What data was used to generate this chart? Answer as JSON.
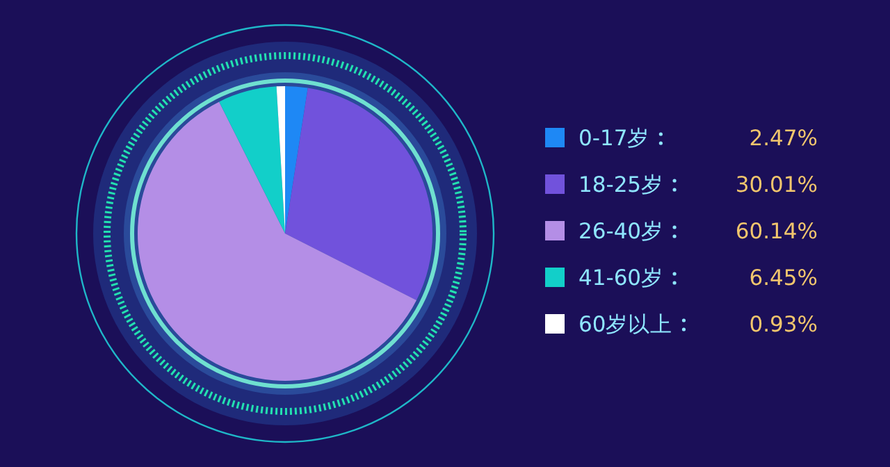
{
  "chart_data": {
    "type": "pie",
    "categories": [
      "0-17岁",
      "18-25岁",
      "26-40岁",
      "41-60岁",
      "60岁以上"
    ],
    "values": [
      2.47,
      30.01,
      60.14,
      6.45,
      0.93
    ],
    "value_labels": [
      "2.47%",
      "30.01%",
      "60.14%",
      "6.45%",
      "0.93%"
    ],
    "colors": [
      "#1e88f5",
      "#7152dc",
      "#b48ee6",
      "#12cfc9",
      "#ffffff"
    ],
    "legend": "right"
  }
}
